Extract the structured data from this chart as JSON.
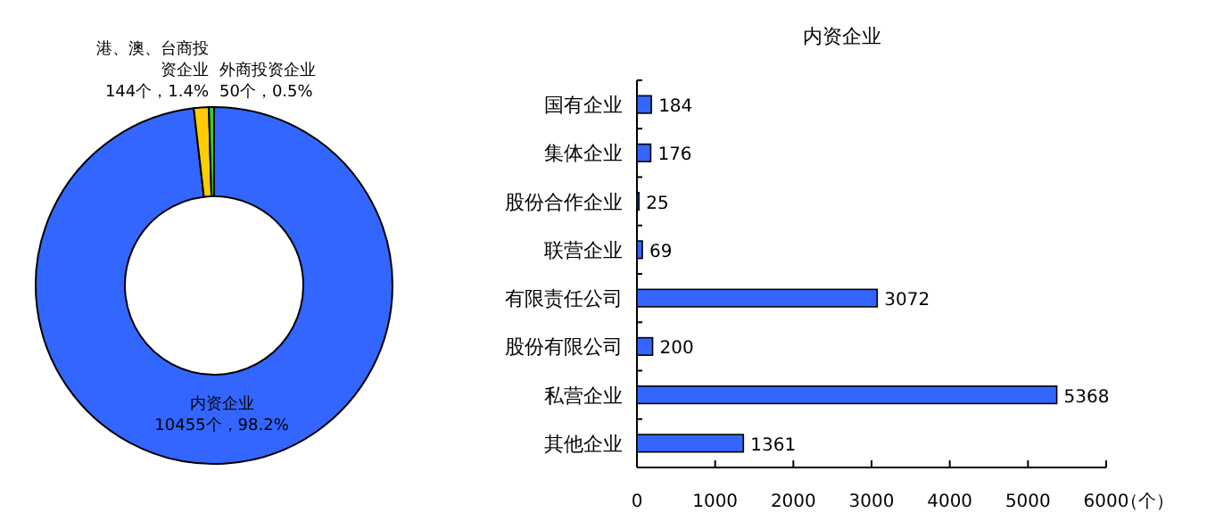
{
  "chart_data": [
    {
      "type": "donut",
      "categories": [
        "内资企业",
        "港、澳、台商投资企业",
        "外商投资企业"
      ],
      "values": [
        10455,
        144,
        50
      ],
      "colors": [
        "#3366ff",
        "#ffcc00",
        "#33cc33"
      ],
      "value_labels": [
        "10455个，98.2%",
        "144个，1.4%",
        "50个，0.5%"
      ]
    },
    {
      "type": "bar",
      "orientation": "horizontal",
      "title": "内资企业",
      "xlabel": "（个）",
      "categories": [
        "国有企业",
        "集体企业",
        "股份合作企业",
        "联营企业",
        "有限责任公司",
        "股份有限公司",
        "私营企业",
        "其他企业"
      ],
      "values": [
        184,
        176,
        25,
        69,
        3072,
        200,
        5368,
        1361
      ],
      "color": "#3366ff",
      "xlim": [
        0,
        6000
      ],
      "xticks": [
        0,
        1000,
        2000,
        3000,
        4000,
        5000,
        6000
      ],
      "data_labels": true
    }
  ]
}
